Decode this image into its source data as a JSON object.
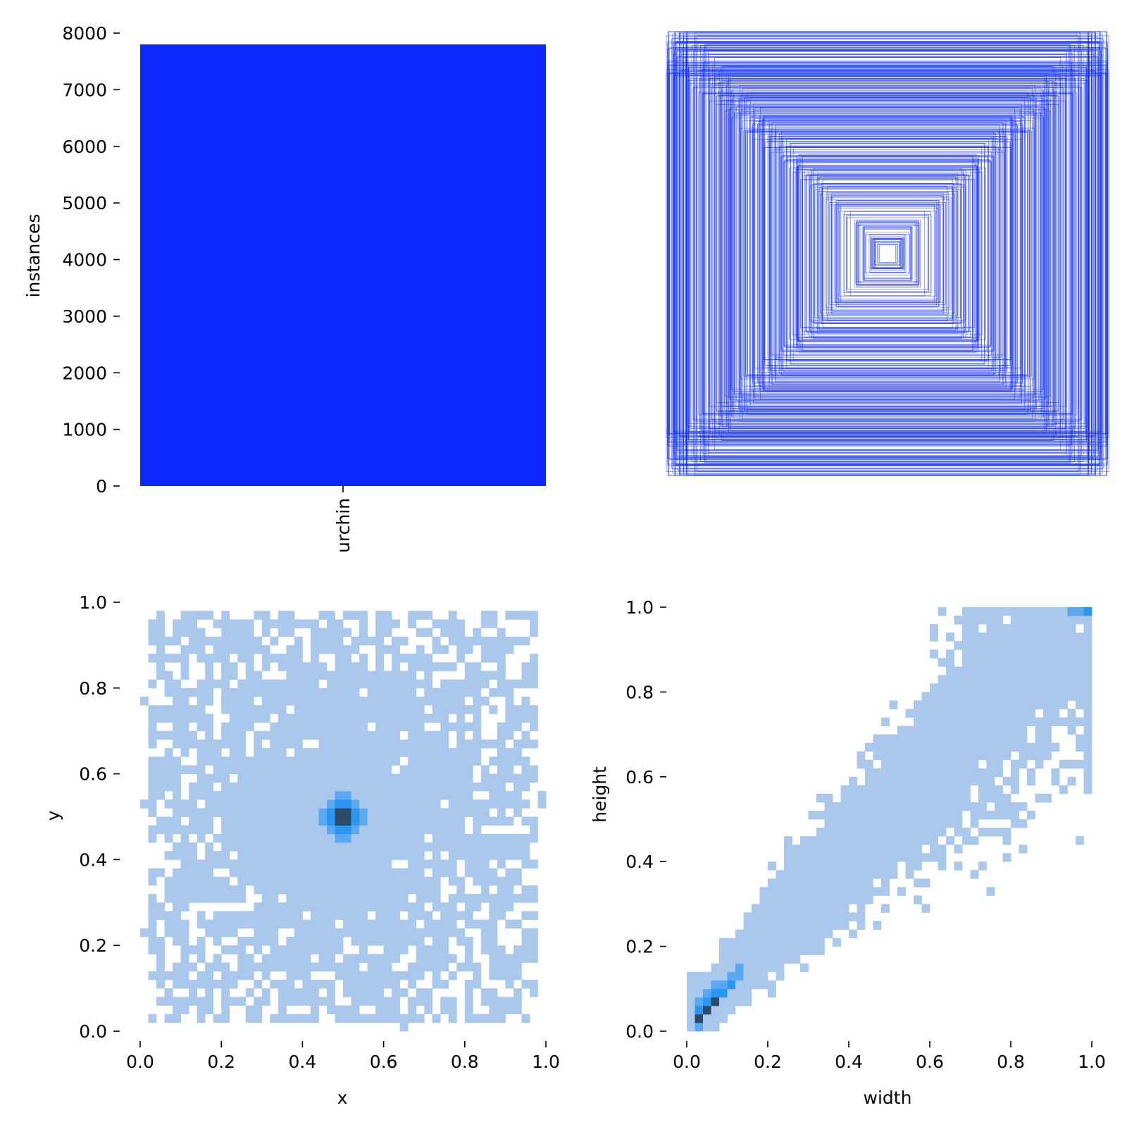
{
  "colors": {
    "bar": "#0a28ff",
    "box_stroke": "#0a28ff",
    "hist_light": "#a9c8ec",
    "hist_mid": "#5aa8f0",
    "hist_bright": "#2a98f2",
    "hist_dark": "#2c4a6a"
  },
  "chart_data": [
    {
      "id": "class-count",
      "type": "bar",
      "categories": [
        "urchin"
      ],
      "values": [
        7800
      ],
      "xlabel": "",
      "ylabel": "instances",
      "ylim": [
        0,
        8000
      ],
      "yticks": [
        0,
        1000,
        2000,
        3000,
        4000,
        5000,
        6000,
        7000,
        8000
      ],
      "ytick_labels": [
        "0",
        "1000",
        "2000",
        "3000",
        "4000",
        "5000",
        "6000",
        "7000",
        "8000"
      ]
    },
    {
      "id": "box-overlay",
      "type": "scatter",
      "description_key": "bounding boxes centered at (0.5,0.5)",
      "center": [
        0.5,
        0.5
      ],
      "box_count": 400,
      "width_range": [
        0.02,
        1.0
      ],
      "height_range": [
        0.02,
        1.0
      ]
    },
    {
      "id": "xy-hist",
      "type": "heatmap",
      "xlabel": "x",
      "ylabel": "y",
      "xlim": [
        0.0,
        1.0
      ],
      "ylim": [
        0.0,
        1.0
      ],
      "bins": 50,
      "peak": [
        0.5,
        0.5
      ],
      "xticks": [
        0.0,
        0.2,
        0.4,
        0.6,
        0.8,
        1.0
      ],
      "xtick_labels": [
        "0.0",
        "0.2",
        "0.4",
        "0.6",
        "0.8",
        "1.0"
      ],
      "yticks": [
        0.0,
        0.2,
        0.4,
        0.6,
        0.8,
        1.0
      ],
      "ytick_labels": [
        "0.0",
        "0.2",
        "0.4",
        "0.6",
        "0.8",
        "1.0"
      ]
    },
    {
      "id": "wh-hist",
      "type": "heatmap",
      "xlabel": "width",
      "ylabel": "height",
      "xlim": [
        0.0,
        1.0
      ],
      "ylim": [
        0.0,
        1.0
      ],
      "bins": 50,
      "peak": [
        0.05,
        0.05
      ],
      "xticks": [
        0.0,
        0.2,
        0.4,
        0.6,
        0.8,
        1.0
      ],
      "xtick_labels": [
        "0.0",
        "0.2",
        "0.4",
        "0.6",
        "0.8",
        "1.0"
      ],
      "yticks": [
        0.0,
        0.2,
        0.4,
        0.6,
        0.8,
        1.0
      ],
      "ytick_labels": [
        "0.0",
        "0.2",
        "0.4",
        "0.6",
        "0.8",
        "1.0"
      ]
    }
  ]
}
